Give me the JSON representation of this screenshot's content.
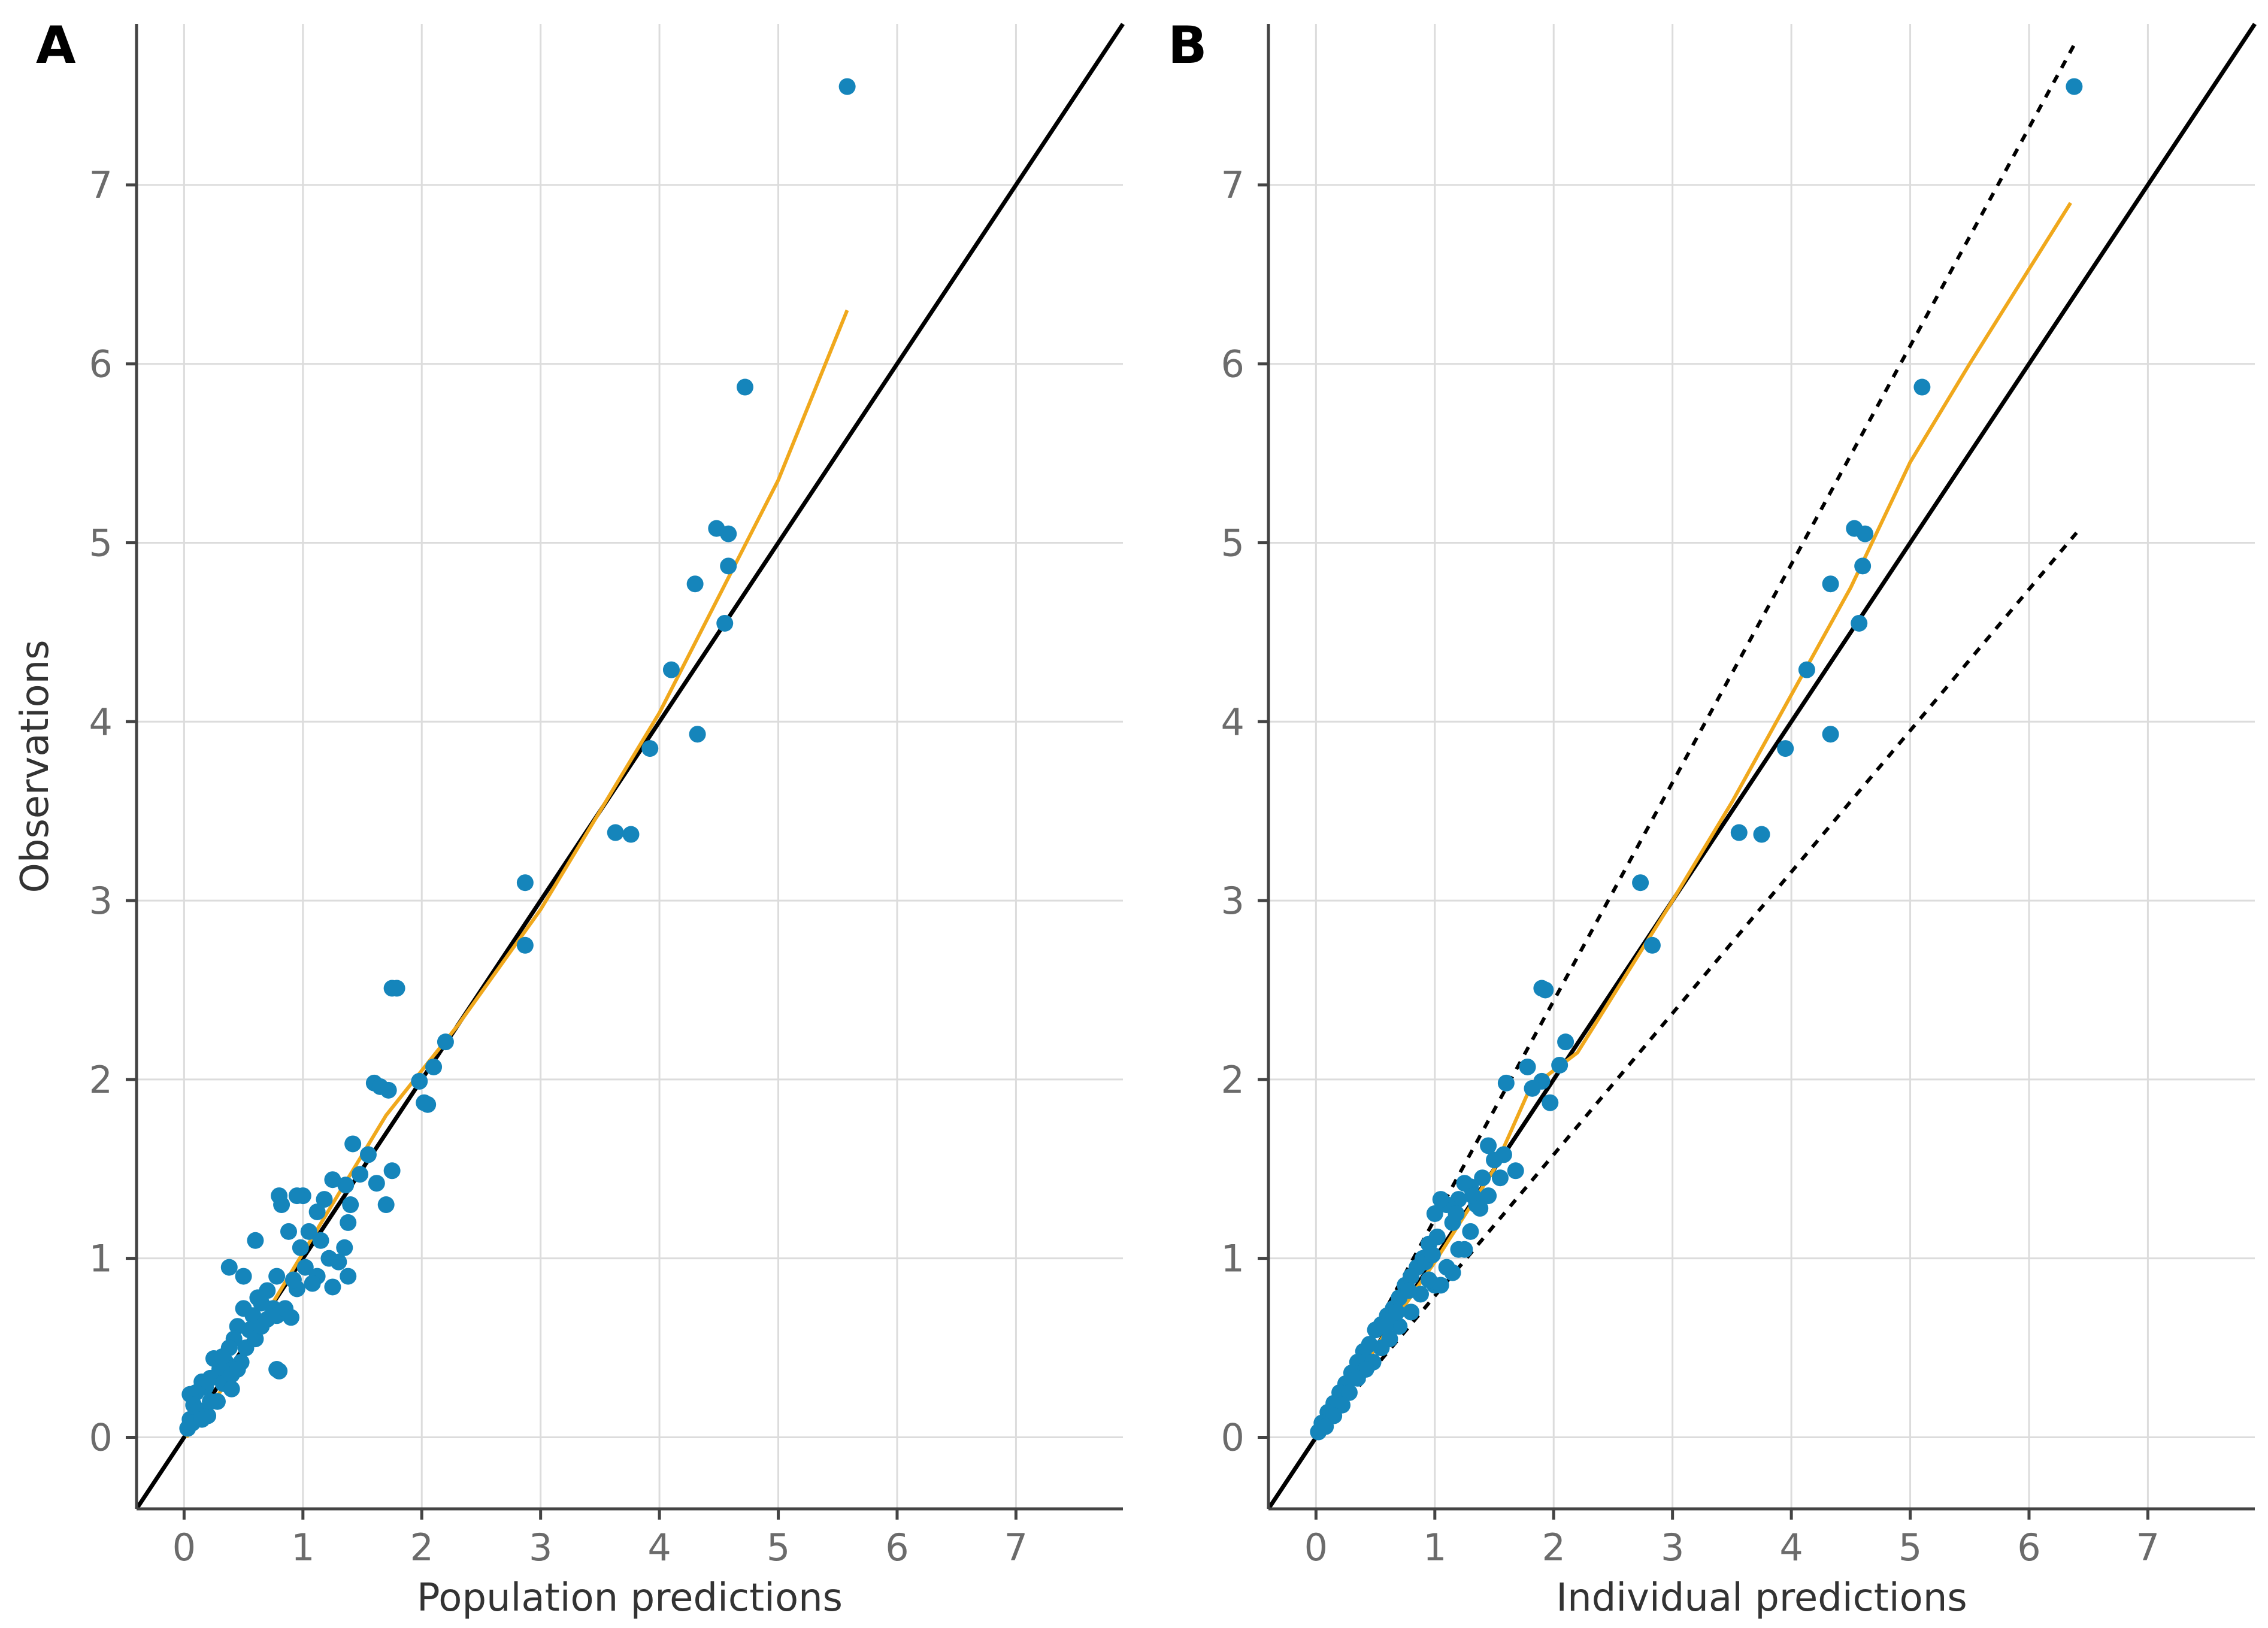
{
  "chart_data": [
    {
      "panel_label": "A",
      "type": "scatter",
      "xlabel": "Population predictions",
      "ylabel": "Observations",
      "xlim": [
        -0.4,
        7.9
      ],
      "ylim": [
        -0.4,
        7.9
      ],
      "xticks": [
        "0",
        "1",
        "2",
        "3",
        "4",
        "5",
        "6",
        "7"
      ],
      "yticks": [
        "0",
        "1",
        "2",
        "3",
        "4",
        "5",
        "6",
        "7"
      ],
      "grid": true,
      "reference_lines": {
        "identity": true,
        "ci_90": false
      },
      "smooth": [
        [
          0.02,
          0.0
        ],
        [
          0.3,
          0.25
        ],
        [
          0.7,
          0.7
        ],
        [
          1.2,
          1.25
        ],
        [
          1.7,
          1.8
        ],
        [
          2.3,
          2.3
        ],
        [
          3.0,
          2.95
        ],
        [
          3.5,
          3.5
        ],
        [
          4.0,
          4.05
        ],
        [
          4.5,
          4.7
        ],
        [
          5.0,
          5.35
        ],
        [
          5.58,
          6.3
        ]
      ],
      "points": [
        [
          5.58,
          7.55
        ],
        [
          4.72,
          5.87
        ],
        [
          4.48,
          5.08
        ],
        [
          4.58,
          5.05
        ],
        [
          4.58,
          4.87
        ],
        [
          4.3,
          4.77
        ],
        [
          4.55,
          4.55
        ],
        [
          4.1,
          4.29
        ],
        [
          4.32,
          3.93
        ],
        [
          3.92,
          3.85
        ],
        [
          3.63,
          3.38
        ],
        [
          3.76,
          3.37
        ],
        [
          2.87,
          3.1
        ],
        [
          2.87,
          2.75
        ],
        [
          1.75,
          2.51
        ],
        [
          1.79,
          2.51
        ],
        [
          1.6,
          1.98
        ],
        [
          1.65,
          1.96
        ],
        [
          1.72,
          1.94
        ],
        [
          1.98,
          1.99
        ],
        [
          2.1,
          2.07
        ],
        [
          2.2,
          2.21
        ],
        [
          2.02,
          1.87
        ],
        [
          2.05,
          1.86
        ],
        [
          1.75,
          1.49
        ],
        [
          1.7,
          1.3
        ],
        [
          1.62,
          1.42
        ],
        [
          1.55,
          1.58
        ],
        [
          1.42,
          1.64
        ],
        [
          1.48,
          1.47
        ],
        [
          1.36,
          1.41
        ],
        [
          1.4,
          1.3
        ],
        [
          1.38,
          1.2
        ],
        [
          1.35,
          1.06
        ],
        [
          1.25,
          1.44
        ],
        [
          1.18,
          1.33
        ],
        [
          1.12,
          1.26
        ],
        [
          1.05,
          1.15
        ],
        [
          1.0,
          1.35
        ],
        [
          0.95,
          1.35
        ],
        [
          0.88,
          1.15
        ],
        [
          0.8,
          1.35
        ],
        [
          0.82,
          1.3
        ],
        [
          0.98,
          1.06
        ],
        [
          1.22,
          1.0
        ],
        [
          1.02,
          0.95
        ],
        [
          1.12,
          0.9
        ],
        [
          1.3,
          0.98
        ],
        [
          1.38,
          0.9
        ],
        [
          1.25,
          0.84
        ],
        [
          1.08,
          0.86
        ],
        [
          0.95,
          0.83
        ],
        [
          0.6,
          1.1
        ],
        [
          0.38,
          0.95
        ],
        [
          0.5,
          0.9
        ],
        [
          0.7,
          0.82
        ],
        [
          0.78,
          0.9
        ],
        [
          0.75,
          0.72
        ],
        [
          0.65,
          0.75
        ],
        [
          0.58,
          0.68
        ],
        [
          0.55,
          0.6
        ],
        [
          0.5,
          0.72
        ],
        [
          0.45,
          0.62
        ],
        [
          0.42,
          0.55
        ],
        [
          0.38,
          0.5
        ],
        [
          0.35,
          0.42
        ],
        [
          0.3,
          0.38
        ],
        [
          0.25,
          0.44
        ],
        [
          0.22,
          0.33
        ],
        [
          0.18,
          0.28
        ],
        [
          0.15,
          0.31
        ],
        [
          0.1,
          0.25
        ],
        [
          0.05,
          0.24
        ],
        [
          0.08,
          0.18
        ],
        [
          0.12,
          0.15
        ],
        [
          0.2,
          0.12
        ],
        [
          0.28,
          0.2
        ],
        [
          0.33,
          0.3
        ],
        [
          0.4,
          0.35
        ],
        [
          0.48,
          0.42
        ],
        [
          0.52,
          0.5
        ],
        [
          0.6,
          0.55
        ],
        [
          0.65,
          0.62
        ],
        [
          0.7,
          0.66
        ],
        [
          0.78,
          0.68
        ],
        [
          0.85,
          0.72
        ],
        [
          0.9,
          0.67
        ],
        [
          0.8,
          0.37
        ],
        [
          0.78,
          0.38
        ],
        [
          0.4,
          0.27
        ],
        [
          0.05,
          0.1
        ],
        [
          0.03,
          0.05
        ],
        [
          0.07,
          0.08
        ],
        [
          0.15,
          0.1
        ],
        [
          0.22,
          0.2
        ],
        [
          0.32,
          0.45
        ],
        [
          0.45,
          0.38
        ],
        [
          0.62,
          0.78
        ],
        [
          0.92,
          0.88
        ],
        [
          1.15,
          1.1
        ]
      ]
    },
    {
      "panel_label": "B",
      "type": "scatter",
      "xlabel": "Individual predictions",
      "ylabel": "",
      "xlim": [
        -0.4,
        7.9
      ],
      "ylim": [
        -0.4,
        7.9
      ],
      "xticks": [
        "0",
        "1",
        "2",
        "3",
        "4",
        "5",
        "6",
        "7"
      ],
      "yticks": [
        "0",
        "1",
        "2",
        "3",
        "4",
        "5",
        "6",
        "7"
      ],
      "grid": true,
      "reference_lines": {
        "identity": true,
        "ci_90": true,
        "ci_upper_slope": 1.22,
        "ci_lower_slope": 0.79,
        "ci_range": [
          0.0,
          6.4
        ]
      },
      "smooth": [
        [
          0.0,
          0.0
        ],
        [
          0.5,
          0.5
        ],
        [
          1.0,
          0.98
        ],
        [
          1.5,
          1.5
        ],
        [
          1.8,
          1.95
        ],
        [
          2.2,
          2.15
        ],
        [
          3.0,
          3.0
        ],
        [
          3.5,
          3.55
        ],
        [
          4.0,
          4.15
        ],
        [
          4.5,
          4.75
        ],
        [
          5.0,
          5.45
        ],
        [
          5.5,
          6.0
        ],
        [
          6.35,
          6.9
        ]
      ],
      "points": [
        [
          6.38,
          7.55
        ],
        [
          5.1,
          5.87
        ],
        [
          4.53,
          5.08
        ],
        [
          4.62,
          5.05
        ],
        [
          4.6,
          4.87
        ],
        [
          4.33,
          4.77
        ],
        [
          4.57,
          4.55
        ],
        [
          4.13,
          4.29
        ],
        [
          4.33,
          3.93
        ],
        [
          3.95,
          3.85
        ],
        [
          3.56,
          3.38
        ],
        [
          3.75,
          3.37
        ],
        [
          2.73,
          3.1
        ],
        [
          2.83,
          2.75
        ],
        [
          1.9,
          2.51
        ],
        [
          1.93,
          2.5
        ],
        [
          1.6,
          1.98
        ],
        [
          1.78,
          2.07
        ],
        [
          1.9,
          1.99
        ],
        [
          2.05,
          2.08
        ],
        [
          2.1,
          2.21
        ],
        [
          1.82,
          1.95
        ],
        [
          1.97,
          1.87
        ],
        [
          1.68,
          1.49
        ],
        [
          1.58,
          1.58
        ],
        [
          1.5,
          1.55
        ],
        [
          1.45,
          1.63
        ],
        [
          1.4,
          1.45
        ],
        [
          1.35,
          1.3
        ],
        [
          1.3,
          1.4
        ],
        [
          1.25,
          1.42
        ],
        [
          1.2,
          1.33
        ],
        [
          1.15,
          1.2
        ],
        [
          1.1,
          1.3
        ],
        [
          1.05,
          1.33
        ],
        [
          1.0,
          1.25
        ],
        [
          0.95,
          1.08
        ],
        [
          0.9,
          1.0
        ],
        [
          0.85,
          0.95
        ],
        [
          0.8,
          0.9
        ],
        [
          0.75,
          0.85
        ],
        [
          0.7,
          0.78
        ],
        [
          0.65,
          0.72
        ],
        [
          0.6,
          0.68
        ],
        [
          0.55,
          0.63
        ],
        [
          0.5,
          0.6
        ],
        [
          0.45,
          0.52
        ],
        [
          0.4,
          0.48
        ],
        [
          0.35,
          0.42
        ],
        [
          0.3,
          0.36
        ],
        [
          0.25,
          0.3
        ],
        [
          0.2,
          0.25
        ],
        [
          0.15,
          0.19
        ],
        [
          0.1,
          0.14
        ],
        [
          0.05,
          0.08
        ],
        [
          0.02,
          0.03
        ],
        [
          1.0,
          0.85
        ],
        [
          1.05,
          0.85
        ],
        [
          1.15,
          0.92
        ],
        [
          1.25,
          1.05
        ],
        [
          1.3,
          1.15
        ],
        [
          1.2,
          1.05
        ],
        [
          1.1,
          0.95
        ],
        [
          0.95,
          0.88
        ],
        [
          0.88,
          0.8
        ],
        [
          0.8,
          0.7
        ],
        [
          0.7,
          0.62
        ],
        [
          0.62,
          0.55
        ],
        [
          0.55,
          0.5
        ],
        [
          0.48,
          0.42
        ],
        [
          0.42,
          0.38
        ],
        [
          0.35,
          0.33
        ],
        [
          0.28,
          0.25
        ],
        [
          0.22,
          0.18
        ],
        [
          0.15,
          0.12
        ],
        [
          0.08,
          0.06
        ],
        [
          1.02,
          1.12
        ],
        [
          1.18,
          1.25
        ],
        [
          1.32,
          1.35
        ],
        [
          0.78,
          0.82
        ],
        [
          0.68,
          0.7
        ],
        [
          0.58,
          0.62
        ],
        [
          0.92,
          0.98
        ],
        [
          1.45,
          1.35
        ],
        [
          1.55,
          1.45
        ],
        [
          1.38,
          1.28
        ],
        [
          0.98,
          1.02
        ]
      ]
    }
  ]
}
